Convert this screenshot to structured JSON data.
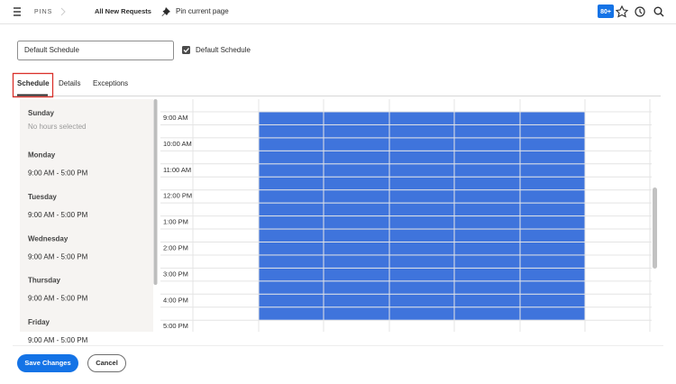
{
  "nav": {
    "section": "PINS",
    "breadcrumb": "All New Requests",
    "pin_action": "Pin current page",
    "badge": "80+"
  },
  "form": {
    "name_input": "Default Schedule",
    "default_checkbox_label": "Default Schedule"
  },
  "tabs": [
    "Schedule",
    "Details",
    "Exceptions"
  ],
  "days": [
    {
      "day": "Sunday",
      "hours": "No hours selected"
    },
    {
      "day": "Monday",
      "hours": "9:00 AM - 5:00 PM"
    },
    {
      "day": "Tuesday",
      "hours": "9:00 AM - 5:00 PM"
    },
    {
      "day": "Wednesday",
      "hours": "9:00 AM - 5:00 PM"
    },
    {
      "day": "Thursday",
      "hours": "9:00 AM - 5:00 PM"
    },
    {
      "day": "Friday",
      "hours": "9:00 AM - 5:00 PM"
    }
  ],
  "time_labels": [
    "9:00 AM",
    "10:00 AM",
    "11:00 AM",
    "12:00 PM",
    "1:00 PM",
    "2:00 PM",
    "3:00 PM",
    "4:00 PM",
    "5:00 PM"
  ],
  "buttons": {
    "save": "Save Changes",
    "cancel": "Cancel"
  }
}
